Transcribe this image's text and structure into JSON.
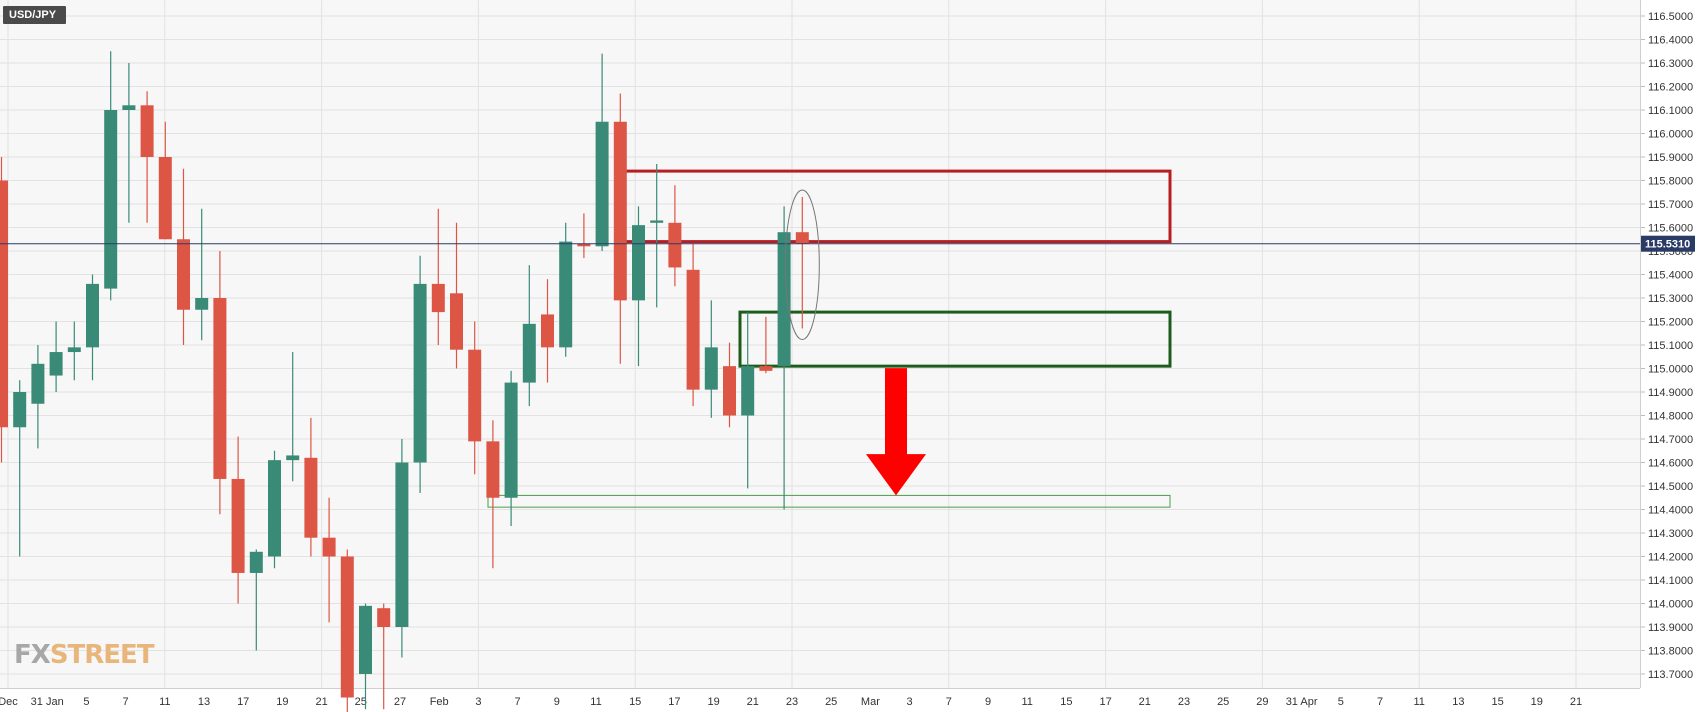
{
  "symbol": "USD/JPY",
  "logo": {
    "part1": "FX",
    "part2": "STREET"
  },
  "colors": {
    "up": "#3a8a78",
    "down": "#dd5545",
    "current_line": "#2a3b66",
    "resistance_box": "#b81d22",
    "support_box": "#1d5c1d",
    "target_box": "#4c9c4c",
    "arrow": "#ff0000"
  },
  "chart_data": {
    "type": "candlestick",
    "y_axis": {
      "position": "right",
      "min": 113.7,
      "max": 116.5,
      "step": 0.1,
      "decimals": 4
    },
    "current_price": "115.5310",
    "x_tick_labels": [
      "Dec",
      "31 Jan",
      "5",
      "7",
      "11",
      "13",
      "17",
      "19",
      "21",
      "25",
      "27",
      "Feb",
      "3",
      "7",
      "9",
      "11",
      "15",
      "17",
      "19",
      "21",
      "23",
      "25",
      "Mar",
      "3",
      "7",
      "9",
      "11",
      "15",
      "17",
      "21",
      "23",
      "25",
      "29",
      "31 Apr",
      "5",
      "7",
      "11",
      "13",
      "15",
      "19",
      "21"
    ],
    "candles": [
      {
        "o": 115.8,
        "h": 115.9,
        "l": 114.6,
        "c": 114.75
      },
      {
        "o": 114.75,
        "h": 114.95,
        "l": 114.2,
        "c": 114.9
      },
      {
        "o": 114.85,
        "h": 115.1,
        "l": 114.66,
        "c": 115.02
      },
      {
        "o": 114.97,
        "h": 115.2,
        "l": 114.9,
        "c": 115.07
      },
      {
        "o": 115.07,
        "h": 115.2,
        "l": 114.95,
        "c": 115.09
      },
      {
        "o": 115.09,
        "h": 115.4,
        "l": 114.95,
        "c": 115.36
      },
      {
        "o": 115.34,
        "h": 116.35,
        "l": 115.29,
        "c": 116.1
      },
      {
        "o": 116.1,
        "h": 116.3,
        "l": 115.62,
        "c": 116.12
      },
      {
        "o": 116.12,
        "h": 116.18,
        "l": 115.62,
        "c": 115.9
      },
      {
        "o": 115.9,
        "h": 116.05,
        "l": 115.55,
        "c": 115.55
      },
      {
        "o": 115.55,
        "h": 115.85,
        "l": 115.1,
        "c": 115.25
      },
      {
        "o": 115.25,
        "h": 115.68,
        "l": 115.12,
        "c": 115.3
      },
      {
        "o": 115.3,
        "h": 115.5,
        "l": 114.38,
        "c": 114.53
      },
      {
        "o": 114.53,
        "h": 114.71,
        "l": 114.0,
        "c": 114.13
      },
      {
        "o": 114.13,
        "h": 114.23,
        "l": 113.8,
        "c": 114.22
      },
      {
        "o": 114.2,
        "h": 114.65,
        "l": 114.15,
        "c": 114.61
      },
      {
        "o": 114.61,
        "h": 115.07,
        "l": 114.52,
        "c": 114.63
      },
      {
        "o": 114.62,
        "h": 114.79,
        "l": 114.2,
        "c": 114.28
      },
      {
        "o": 114.28,
        "h": 114.45,
        "l": 113.92,
        "c": 114.2
      },
      {
        "o": 114.2,
        "h": 114.23,
        "l": 113.5,
        "c": 113.6
      },
      {
        "o": 113.7,
        "h": 114.0,
        "l": 113.55,
        "c": 113.99
      },
      {
        "o": 113.98,
        "h": 114.0,
        "l": 113.55,
        "c": 113.9
      },
      {
        "o": 113.9,
        "h": 114.7,
        "l": 113.77,
        "c": 114.6
      },
      {
        "o": 114.6,
        "h": 115.48,
        "l": 114.47,
        "c": 115.36
      },
      {
        "o": 115.36,
        "h": 115.68,
        "l": 115.1,
        "c": 115.24
      },
      {
        "o": 115.32,
        "h": 115.62,
        "l": 115.0,
        "c": 115.08
      },
      {
        "o": 115.08,
        "h": 115.2,
        "l": 114.55,
        "c": 114.69
      },
      {
        "o": 114.69,
        "h": 114.78,
        "l": 114.15,
        "c": 114.45
      },
      {
        "o": 114.45,
        "h": 114.99,
        "l": 114.33,
        "c": 114.94
      },
      {
        "o": 114.94,
        "h": 115.44,
        "l": 114.84,
        "c": 115.19
      },
      {
        "o": 115.23,
        "h": 115.38,
        "l": 114.94,
        "c": 115.09
      },
      {
        "o": 115.09,
        "h": 115.62,
        "l": 115.05,
        "c": 115.54
      },
      {
        "o": 115.53,
        "h": 115.66,
        "l": 115.47,
        "c": 115.52
      },
      {
        "o": 115.52,
        "h": 116.34,
        "l": 115.5,
        "c": 116.05
      },
      {
        "o": 116.05,
        "h": 116.17,
        "l": 115.02,
        "c": 115.29
      },
      {
        "o": 115.29,
        "h": 115.69,
        "l": 115.01,
        "c": 115.61
      },
      {
        "o": 115.62,
        "h": 115.87,
        "l": 115.26,
        "c": 115.63
      },
      {
        "o": 115.62,
        "h": 115.78,
        "l": 115.35,
        "c": 115.43
      },
      {
        "o": 115.42,
        "h": 115.53,
        "l": 114.84,
        "c": 114.91
      },
      {
        "o": 114.91,
        "h": 115.29,
        "l": 114.79,
        "c": 115.09
      },
      {
        "o": 115.01,
        "h": 115.11,
        "l": 114.75,
        "c": 114.8
      },
      {
        "o": 114.8,
        "h": 115.24,
        "l": 114.49,
        "c": 115.01
      },
      {
        "o": 115.01,
        "h": 115.22,
        "l": 114.98,
        "c": 114.99
      },
      {
        "o": 115.01,
        "h": 115.69,
        "l": 114.4,
        "c": 115.58
      },
      {
        "o": 115.58,
        "h": 115.73,
        "l": 115.17,
        "c": 115.53
      }
    ],
    "zones": [
      {
        "name": "resistance",
        "top": 115.84,
        "bottom": 115.54
      },
      {
        "name": "support",
        "top": 115.24,
        "bottom": 115.01
      },
      {
        "name": "target",
        "top": 114.46,
        "bottom": 114.41
      }
    ]
  }
}
